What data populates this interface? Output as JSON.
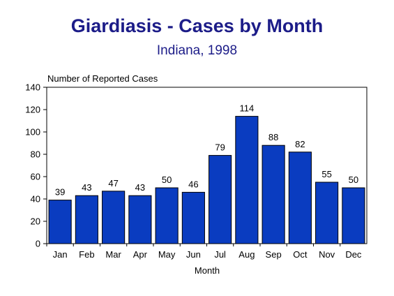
{
  "chart_data": {
    "type": "bar",
    "title": "Giardiasis - Cases by Month",
    "subtitle": "Indiana, 1998",
    "ylabel": "Number of Reported Cases",
    "xlabel": "Month",
    "categories": [
      "Jan",
      "Feb",
      "Mar",
      "Apr",
      "May",
      "Jun",
      "Jul",
      "Aug",
      "Sep",
      "Oct",
      "Nov",
      "Dec"
    ],
    "values": [
      39,
      43,
      47,
      43,
      50,
      46,
      79,
      114,
      88,
      82,
      55,
      50
    ],
    "ylim": [
      0,
      140
    ],
    "yticks": [
      0,
      20,
      40,
      60,
      80,
      100,
      120,
      140
    ],
    "grid": false,
    "legend": "none",
    "bar_color": "#0a3cc0",
    "bar_edge_color": "#000000",
    "title_color": "#1c1c88"
  }
}
